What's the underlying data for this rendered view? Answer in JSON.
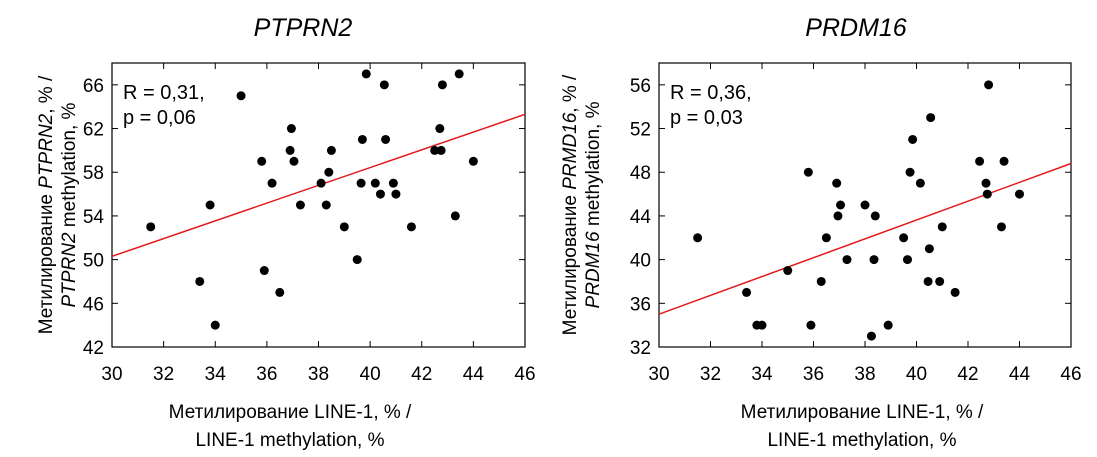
{
  "chart_data": [
    {
      "type": "scatter",
      "title": "PTPRN2",
      "xlabel_line1": "Метилирование LINE-1, % /",
      "xlabel_line2": "LINE-1 methylation, %",
      "ylabel_line1": {
        "pre": "Метилирование ",
        "gene": "PTPRN2",
        "post": ", % /"
      },
      "ylabel_line2": {
        "pre": "",
        "gene": "PTPRN2",
        "post": " methylation, %"
      },
      "annotation_r": "R = 0,31,",
      "annotation_p": "p = 0,06",
      "xlim": [
        30,
        46
      ],
      "ylim": [
        42,
        68
      ],
      "xticks": [
        30,
        32,
        34,
        36,
        38,
        40,
        42,
        44,
        46
      ],
      "yticks": [
        42,
        46,
        50,
        54,
        58,
        62,
        66
      ],
      "regression": {
        "x": [
          30,
          46
        ],
        "y": [
          50.3,
          63.3
        ],
        "color": "#e31a1c"
      },
      "points": {
        "x": [
          31.5,
          33.4,
          33.8,
          34.0,
          35.0,
          35.8,
          35.9,
          36.2,
          36.5,
          36.9,
          36.95,
          37.05,
          37.3,
          38.1,
          38.3,
          38.4,
          38.5,
          39.0,
          39.5,
          39.65,
          39.7,
          39.85,
          40.2,
          40.4,
          40.55,
          40.6,
          40.9,
          41.0,
          41.6,
          42.5,
          42.7,
          42.75,
          42.8,
          43.3,
          43.45,
          44.0
        ],
        "y": [
          53,
          48,
          55,
          44,
          65,
          59,
          49,
          57,
          47,
          60,
          62,
          59,
          55,
          57,
          55,
          58,
          60,
          53,
          50,
          57,
          61,
          67,
          57,
          56,
          66,
          61,
          57,
          56,
          53,
          60,
          62,
          60,
          66,
          54,
          67,
          59
        ]
      },
      "point_color": "#000000"
    },
    {
      "type": "scatter",
      "title": "PRDM16",
      "xlabel_line1": "Метилирование LINE-1, % /",
      "xlabel_line2": "LINE-1 methylation, %",
      "ylabel_line1": {
        "pre": "Метилирование ",
        "gene": "PRMD16",
        "post": ", % /"
      },
      "ylabel_line2": {
        "pre": "",
        "gene": "PRDM16",
        "post": " methylation, %"
      },
      "annotation_r": "R = 0,36,",
      "annotation_p": "p = 0,03",
      "xlim": [
        30,
        46
      ],
      "ylim": [
        32,
        58
      ],
      "xticks": [
        30,
        32,
        34,
        36,
        38,
        40,
        42,
        44,
        46
      ],
      "yticks": [
        32,
        36,
        40,
        44,
        48,
        52,
        56
      ],
      "regression": {
        "x": [
          30,
          46
        ],
        "y": [
          35.0,
          48.8
        ],
        "color": "#e31a1c"
      },
      "points": {
        "x": [
          31.5,
          33.4,
          33.8,
          34.0,
          35.0,
          35.8,
          35.9,
          36.3,
          36.5,
          36.9,
          36.95,
          37.05,
          37.3,
          38.0,
          38.25,
          38.35,
          38.4,
          38.9,
          39.5,
          39.65,
          39.75,
          39.85,
          40.15,
          40.45,
          40.5,
          40.55,
          40.9,
          41.0,
          41.5,
          42.45,
          42.7,
          42.75,
          42.8,
          43.3,
          43.4,
          44.0
        ],
        "y": [
          42,
          37,
          34,
          34,
          39,
          48,
          34,
          38,
          42,
          47,
          44,
          45,
          40,
          45,
          33,
          40,
          44,
          34,
          42,
          40,
          48,
          51,
          47,
          38,
          41,
          53,
          38,
          43,
          37,
          49,
          47,
          46,
          56,
          43,
          49,
          46
        ]
      },
      "point_color": "#000000"
    }
  ]
}
